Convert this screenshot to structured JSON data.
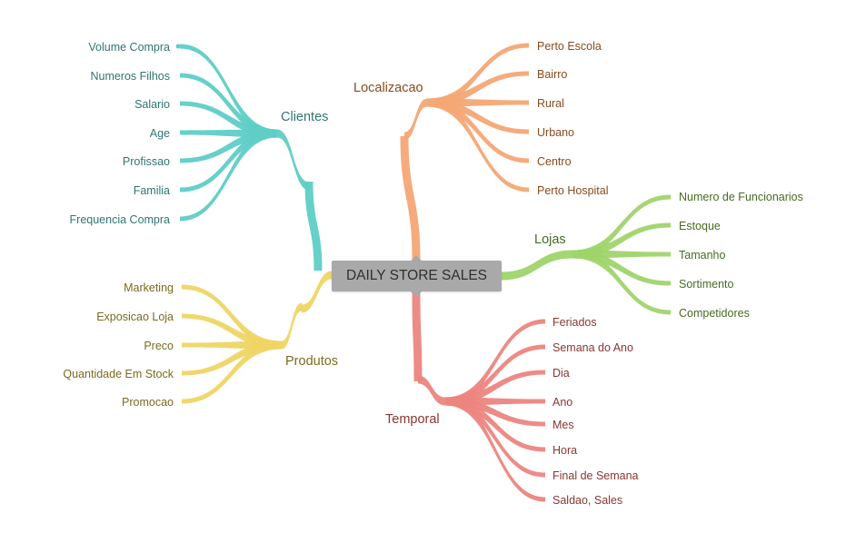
{
  "root": {
    "label": "DAILY STORE SALES",
    "color": "#a9a9a9"
  },
  "groups": {
    "clientes": {
      "label": "Clientes",
      "color": "#5ecdc6",
      "text_color": "#2f7672",
      "items": [
        "Volume Compra",
        "Numeros Filhos",
        "Salario",
        "Age",
        "Profissao",
        "Familia",
        "Frequencia Compra"
      ]
    },
    "produtos": {
      "label": "Produtos",
      "color": "#efd564",
      "text_color": "#7a6a1f",
      "items": [
        "Marketing",
        "Exposicao Loja",
        "Preco",
        "Quantidade Em Stock",
        "Promocao"
      ]
    },
    "localizacao": {
      "label": "Localizacao",
      "color": "#f4a774",
      "text_color": "#8a4a1e",
      "items": [
        "Perto Escola",
        "Bairro",
        "Rural",
        "Urbano",
        "Centro",
        "Perto Hospital"
      ]
    },
    "lojas": {
      "label": "Lojas",
      "color": "#9fd46c",
      "text_color": "#476b22",
      "items": [
        "Numero de Funcionarios",
        "Estoque",
        "Tamanho",
        "Sortimento",
        "Competidores"
      ]
    },
    "temporal": {
      "label": "Temporal",
      "color": "#ec8580",
      "text_color": "#8a3631",
      "items": [
        "Feriados",
        "Semana do Ano",
        "Dia",
        "Ano",
        "Mes",
        "Hora",
        "Final de Semana",
        "Saldao, Sales"
      ]
    }
  }
}
